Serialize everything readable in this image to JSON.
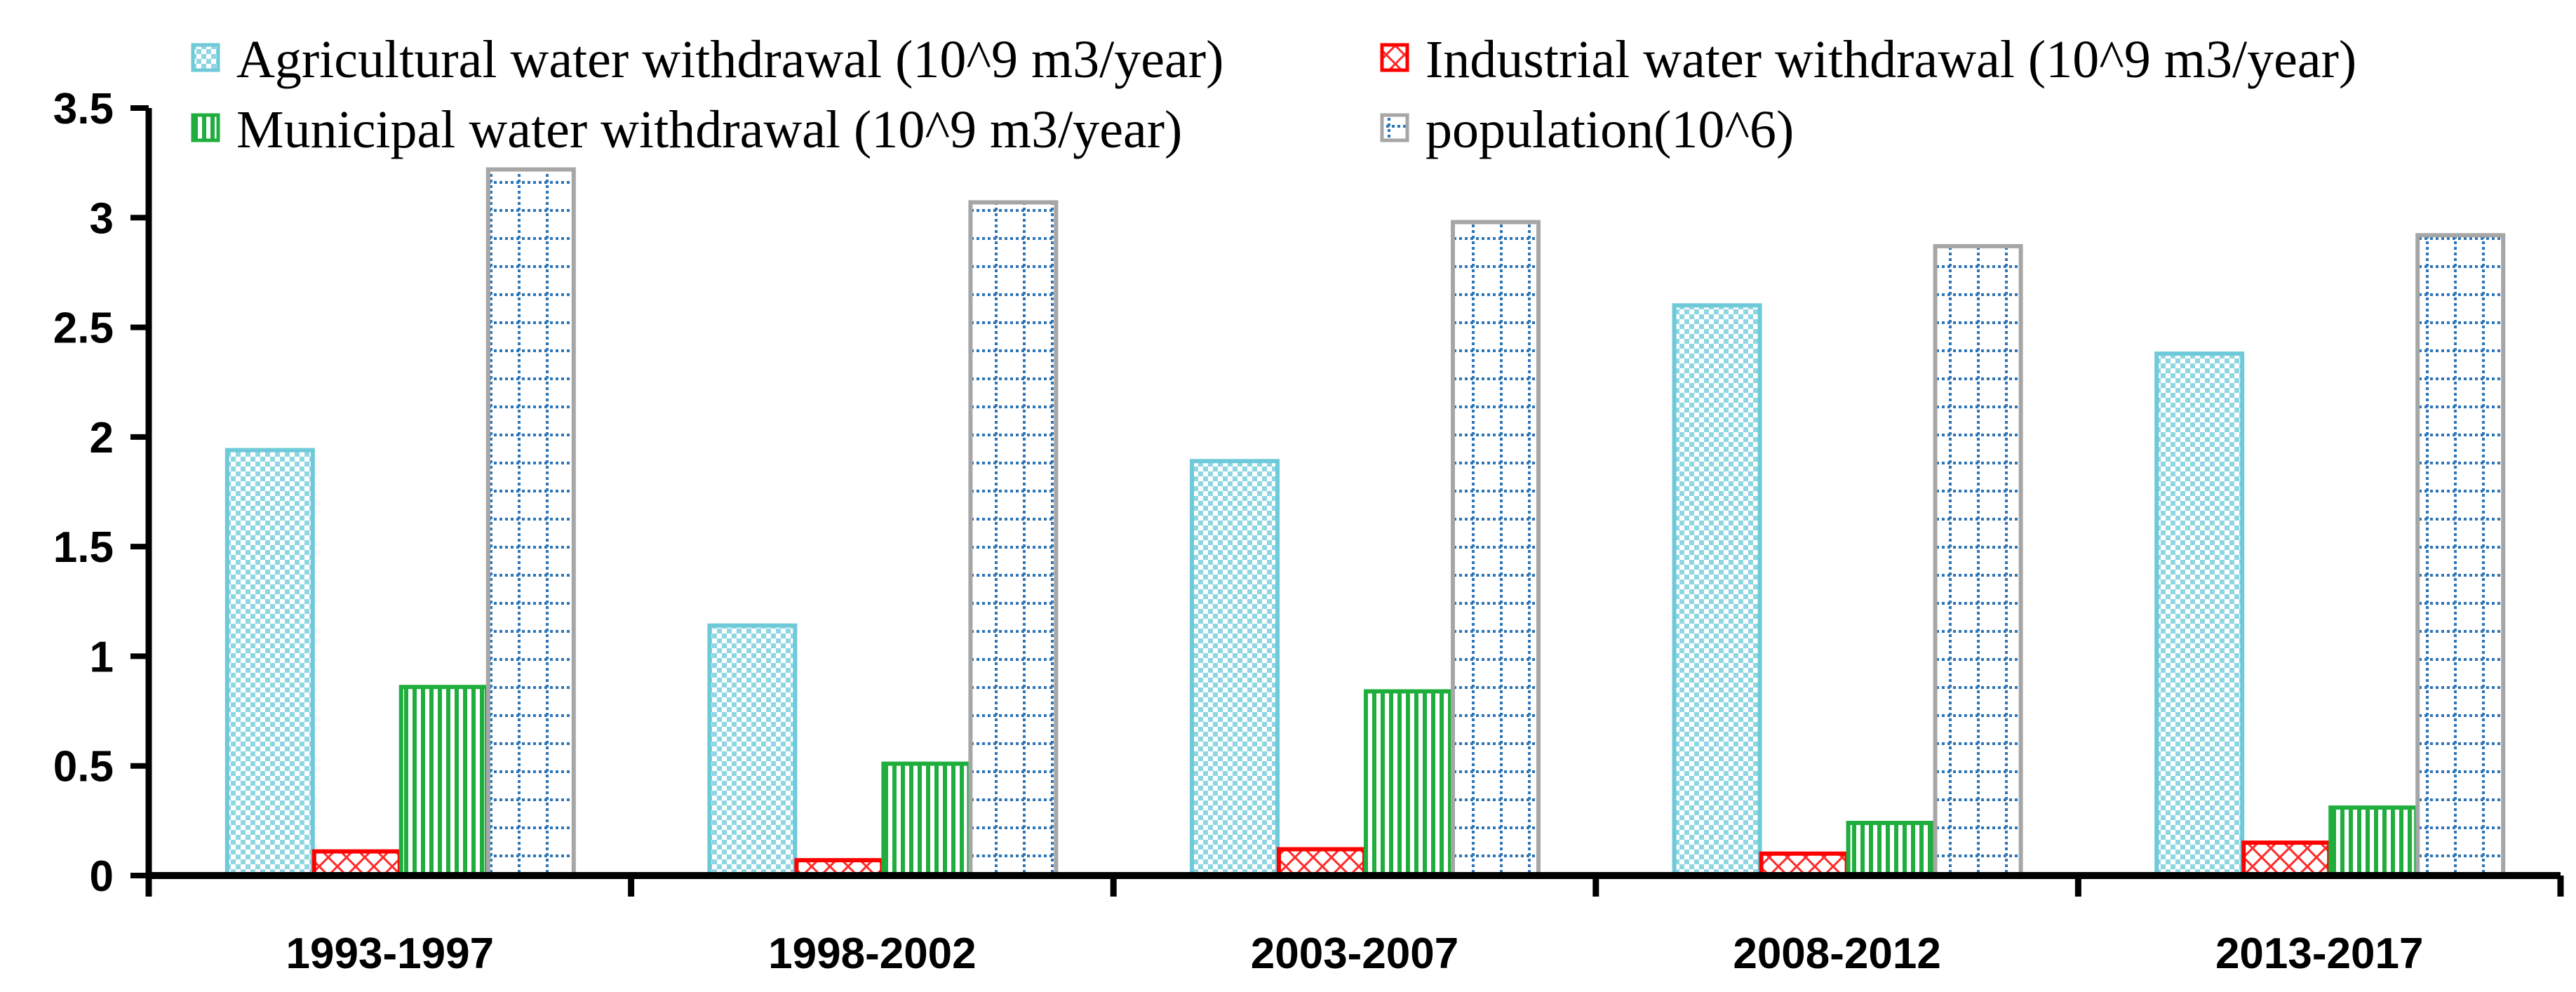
{
  "chart_data": {
    "type": "bar",
    "title": "",
    "xlabel": "",
    "ylabel": "",
    "ylim": [
      0,
      3.5
    ],
    "y_ticks": [
      "0",
      "0.5",
      "1",
      "1.5",
      "2",
      "2.5",
      "3",
      "3.5"
    ],
    "grid": false,
    "legend_position": "top",
    "categories": [
      "1993-1997",
      "1998-2002",
      "2003-2007",
      "2008-2012",
      "2013-2017"
    ],
    "series": [
      {
        "name": "Agricultural water withdrawal (10^9 m3/year)",
        "key": "agricultural",
        "values": [
          1.94,
          1.14,
          1.89,
          2.6,
          2.38
        ],
        "stroke": "#6ec9d9",
        "fill": "#8fd6e3"
      },
      {
        "name": "Industrial water withdrawal (10^9 m3/year)",
        "key": "industrial",
        "values": [
          0.11,
          0.07,
          0.12,
          0.1,
          0.15
        ],
        "stroke": "#ff0000",
        "fill": "#ff3333"
      },
      {
        "name": "Municipal water withdrawal (10^9 m3/year)",
        "key": "municipal",
        "values": [
          0.86,
          0.51,
          0.84,
          0.24,
          0.31
        ],
        "stroke": "#1fae3d",
        "fill": "#1fae3d"
      },
      {
        "name": "population(10^6)",
        "key": "population",
        "values": [
          3.22,
          3.07,
          2.98,
          2.87,
          2.92
        ],
        "stroke": "#a6a6a6",
        "fill": "#2e75b6"
      }
    ]
  }
}
